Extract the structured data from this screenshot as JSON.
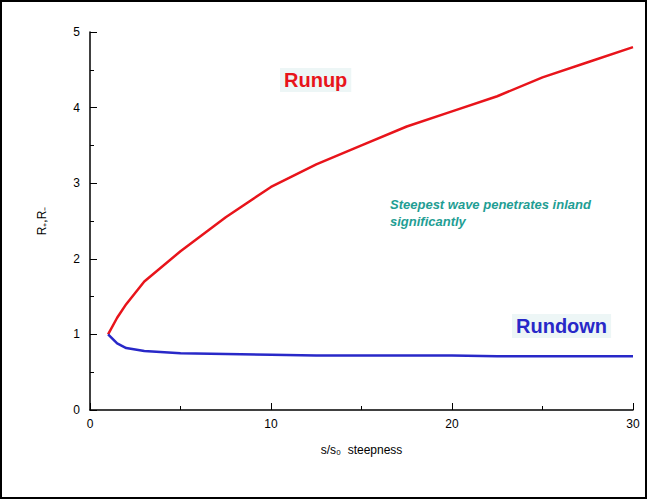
{
  "chart_data": {
    "type": "line",
    "x_label": "s/s₀ steepness",
    "y_label": "R₊,R₋",
    "annotations": [
      "Steepest wave penetrates inland significantly"
    ],
    "x": [
      1,
      1.5,
      2,
      3,
      5,
      7.5,
      10,
      12.5,
      15,
      17.5,
      20,
      22.5,
      25,
      27.5,
      30
    ],
    "series": [
      {
        "name": "Runup",
        "color": "#e8141b",
        "marker": "none",
        "line_style": "solid",
        "values": [
          1,
          1.22,
          1.4,
          1.7,
          2.1,
          2.55,
          2.95,
          3.25,
          3.5,
          3.75,
          3.95,
          4.15,
          4.4,
          4.6,
          4.8
        ]
      },
      {
        "name": "Rundown",
        "color": "#2828c8",
        "marker": "none",
        "line_style": "solid",
        "values": [
          1,
          0.88,
          0.82,
          0.78,
          0.75,
          0.74,
          0.73,
          0.72,
          0.72,
          0.72,
          0.72,
          0.71,
          0.71,
          0.71,
          0.71
        ]
      }
    ],
    "xlim": [
      0,
      30
    ],
    "xticks": [
      0,
      10,
      20,
      30
    ],
    "ylim": [
      0,
      5
    ],
    "yticks": [
      0,
      1,
      2,
      3,
      4,
      5
    ],
    "grid": false
  }
}
